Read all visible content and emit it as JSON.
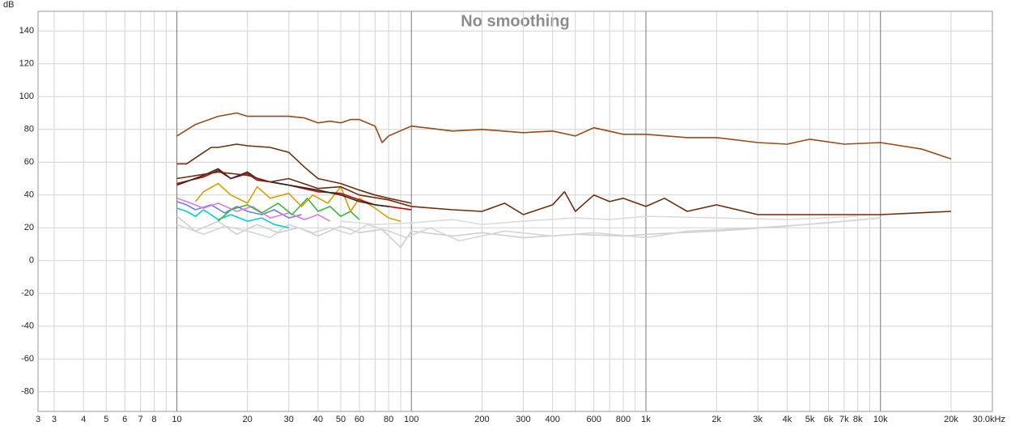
{
  "chart_data": {
    "type": "line",
    "title": "No smoothing",
    "y_unit": "dB",
    "log_x": true,
    "grid": true,
    "xlim": [
      2.56,
      30000
    ],
    "ylim": [
      -92,
      152
    ],
    "yticks": [
      140,
      120,
      100,
      80,
      60,
      40,
      20,
      0,
      -20,
      -40,
      -60,
      -80
    ],
    "xticks": [
      {
        "value": 2.56,
        "label": "3"
      },
      3,
      4,
      5,
      6,
      7,
      8,
      10,
      20,
      30,
      40,
      50,
      60,
      80,
      100,
      200,
      300,
      400,
      600,
      800,
      {
        "value": 1000,
        "label": "1k"
      },
      {
        "value": 2000,
        "label": "2k"
      },
      {
        "value": 3000,
        "label": "3k"
      },
      {
        "value": 4000,
        "label": "4k"
      },
      {
        "value": 5000,
        "label": "5k"
      },
      {
        "value": 6000,
        "label": "6k"
      },
      {
        "value": 7000,
        "label": "7k"
      },
      {
        "value": 8000,
        "label": "8k"
      },
      {
        "value": 10000,
        "label": "10k"
      },
      {
        "value": 20000,
        "label": "20k"
      },
      {
        "value": 30000,
        "label": "30.0kHz"
      }
    ],
    "xminor_ticks": [
      9,
      70,
      90,
      500,
      700,
      900,
      9000
    ],
    "series": [
      {
        "color": "#cfcfcf",
        "x": [
          10,
          12,
          15,
          18,
          22,
          27,
          33,
          40,
          50,
          60,
          75,
          90,
          100,
          150,
          200,
          300,
          500,
          800,
          1000,
          2000,
          4000,
          7000,
          10000
        ],
        "values": [
          27,
          18,
          24,
          16,
          22,
          17,
          20,
          15,
          21,
          17,
          19,
          8,
          18,
          15,
          17,
          14,
          16,
          15,
          16,
          18,
          21,
          24,
          26
        ]
      },
      {
        "color": "#d6d6d6",
        "x": [
          10,
          13,
          16,
          20,
          25,
          30,
          38,
          45,
          55,
          65,
          80,
          95,
          120,
          160,
          250,
          400,
          600,
          1000,
          1500,
          3000,
          6000,
          10000
        ],
        "values": [
          22,
          16,
          21,
          18,
          14,
          22,
          17,
          20,
          16,
          22,
          18,
          14,
          20,
          12,
          18,
          15,
          17,
          14,
          18,
          20,
          23,
          26
        ]
      },
      {
        "color": "#dcdcdc",
        "x": [
          50,
          70,
          100,
          150,
          200,
          300,
          500,
          700,
          1000,
          2000,
          4000,
          8000
        ],
        "values": [
          24,
          22,
          23,
          25,
          22,
          24,
          26,
          25,
          27,
          26,
          25,
          27
        ]
      },
      {
        "color": "#00d0d0",
        "x": [
          10,
          11,
          12,
          13,
          15,
          17,
          20,
          23,
          26,
          30
        ],
        "values": [
          32,
          30,
          27,
          31,
          25,
          28,
          24,
          26,
          22,
          20
        ]
      },
      {
        "color": "#6a7fe8",
        "x": [
          10,
          11,
          12,
          14,
          16,
          18,
          20,
          23,
          26,
          30,
          34
        ],
        "values": [
          36,
          34,
          31,
          34,
          29,
          33,
          30,
          28,
          31,
          26,
          28
        ]
      },
      {
        "color": "#e07be0",
        "x": [
          10,
          11,
          13,
          15,
          18,
          21,
          25,
          30,
          35,
          40,
          45
        ],
        "values": [
          38,
          36,
          32,
          35,
          30,
          33,
          26,
          29,
          25,
          28,
          24
        ]
      },
      {
        "color": "#3cb83c",
        "x": [
          15,
          17,
          20,
          23,
          27,
          31,
          36,
          40,
          45,
          50,
          55,
          60
        ],
        "values": [
          24,
          31,
          34,
          29,
          35,
          28,
          38,
          30,
          33,
          27,
          30,
          25
        ]
      },
      {
        "color": "#d4a000",
        "x": [
          12,
          13,
          15,
          17,
          20,
          22,
          25,
          30,
          34,
          38,
          44,
          50,
          55,
          60,
          70,
          80,
          90
        ],
        "values": [
          36,
          42,
          47,
          40,
          35,
          45,
          38,
          41,
          33,
          40,
          35,
          45,
          30,
          38,
          32,
          26,
          24
        ]
      },
      {
        "color": "#c00000",
        "x": [
          10,
          13,
          15,
          17,
          20,
          22,
          25,
          30,
          40,
          50,
          60,
          70,
          80,
          100
        ],
        "values": [
          47,
          51,
          55,
          50,
          53,
          49,
          48,
          46,
          42,
          41,
          37,
          34,
          33,
          31
        ]
      },
      {
        "color": "#2a2a2a",
        "x": [
          10,
          13,
          15,
          17,
          20,
          22,
          25,
          30,
          40,
          50,
          60,
          70,
          80
        ],
        "values": [
          46,
          52,
          56,
          50,
          54,
          50,
          48,
          46,
          43,
          40,
          36,
          34,
          33
        ]
      },
      {
        "color": "#6b2f0f",
        "x": [
          10,
          11,
          14,
          15,
          18,
          20,
          25,
          30,
          35,
          40,
          50,
          60,
          70,
          80,
          100
        ],
        "values": [
          59,
          59,
          69,
          69,
          71,
          70,
          69,
          66,
          57,
          50,
          47,
          43,
          40,
          38,
          35
        ]
      },
      {
        "color": "#6b2f0f",
        "x": [
          10,
          15,
          20,
          25,
          30,
          40,
          50,
          60,
          80,
          100,
          150,
          200,
          250,
          300,
          400,
          450,
          500,
          600,
          700,
          800,
          1000,
          1200,
          1500,
          2000,
          3000,
          5000,
          10000,
          20000
        ],
        "values": [
          50,
          54,
          52,
          48,
          50,
          44,
          45,
          40,
          37,
          33,
          31,
          30,
          35,
          28,
          34,
          42,
          30,
          40,
          36,
          38,
          33,
          38,
          30,
          34,
          28,
          28,
          28,
          30
        ]
      },
      {
        "color": "#9a4a16",
        "x": [
          10,
          12,
          15,
          18,
          20,
          25,
          30,
          35,
          40,
          45,
          50,
          55,
          60,
          70,
          75,
          80,
          100,
          150,
          200,
          300,
          400,
          500,
          600,
          800,
          1000,
          1500,
          2000,
          3000,
          4000,
          5000,
          7000,
          10000,
          15000,
          20000
        ],
        "values": [
          76,
          83,
          88,
          90,
          88,
          88,
          88,
          87,
          84,
          85,
          84,
          86,
          86,
          82,
          72,
          76,
          82,
          79,
          80,
          78,
          79,
          76,
          81,
          77,
          77,
          75,
          75,
          72,
          71,
          74,
          71,
          72,
          68,
          62
        ]
      }
    ]
  }
}
